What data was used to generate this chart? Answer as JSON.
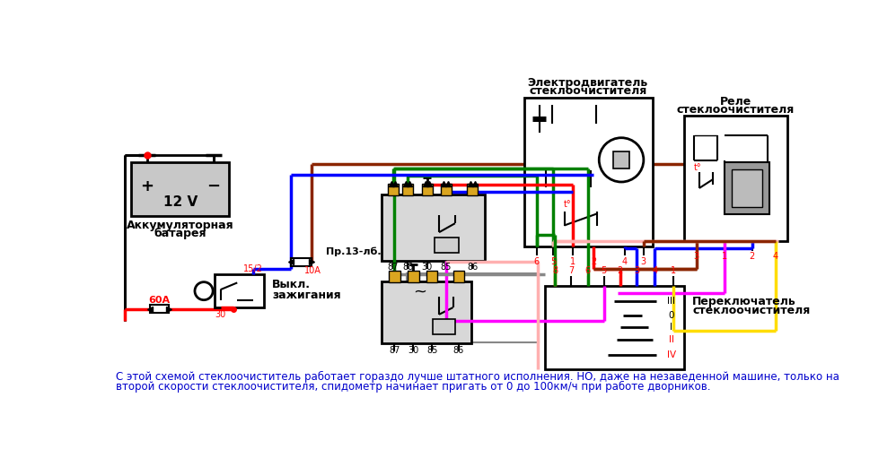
{
  "bg": "#ffffff",
  "cap1": "С этой схемой стеклоочиститель работает гораздо лучше штатного исполнения. НО, даже на незаведенной машине, только на",
  "cap2": "второй скорости стеклоочистителя, спидометр начинает пригать от 0 до 100км/ч при работе дворников.",
  "cap_color": "#0000cc",
  "lbl_bat1": "Аккумуляторная",
  "lbl_bat2": "батарея",
  "lbl_ign1": "Выкл.",
  "lbl_ign2": "зажигания",
  "lbl_fuse": "Пр.13-лб.",
  "lbl_fuse2": "10А",
  "lbl_motor1": "Электродвигатель",
  "lbl_motor2": "стеклоочистителя",
  "lbl_relay1": "Реле",
  "lbl_relay2": "стеклоочистителя",
  "lbl_sw1": "Переключатель",
  "lbl_sw2": "стеклоочистителя",
  "t12v": "12 V",
  "t60a": "60А",
  "t30": "30",
  "t152": "15/2",
  "t10a": "10А"
}
